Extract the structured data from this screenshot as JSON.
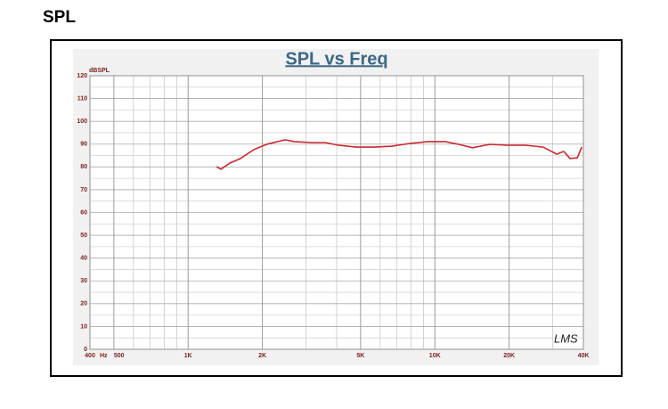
{
  "heading": "SPL",
  "chart_data": {
    "type": "line",
    "title": "SPL vs Freq",
    "y_label": "dBSPL",
    "x_unit": "Hz",
    "watermark": "LMS",
    "x": [
      1303,
      1358,
      1476,
      1630,
      1845,
      2090,
      2470,
      2690,
      3170,
      3590,
      4070,
      4800,
      5670,
      6700,
      7910,
      9340,
      11000,
      12500,
      14200,
      16700,
      19700,
      23300,
      27500,
      31200,
      33300,
      35300,
      37800,
      39400
    ],
    "values": [
      80.1,
      79,
      81.7,
      83.7,
      87.6,
      90,
      91.9,
      91.1,
      90.7,
      90.7,
      89.5,
      88.7,
      88.7,
      89.1,
      90.3,
      91.1,
      91.1,
      89.9,
      88.4,
      89.9,
      89.5,
      89.5,
      88.7,
      85.6,
      86.8,
      83.7,
      84,
      88.7
    ],
    "color": "#c8282d",
    "xlim": [
      400,
      40000
    ],
    "log_x": true,
    "xticks": [
      400,
      500,
      {
        "value": 1000,
        "label": "1K"
      },
      {
        "value": 2000,
        "label": "2K"
      },
      {
        "value": 5000,
        "label": "5K"
      },
      {
        "value": 10000,
        "label": "10K"
      },
      {
        "value": 20000,
        "label": "20K"
      },
      {
        "value": 40000,
        "label": "40K"
      }
    ],
    "ylim": [
      0,
      120
    ],
    "yticks": [
      0,
      10,
      20,
      30,
      40,
      50,
      60,
      70,
      80,
      90,
      100,
      110,
      120
    ],
    "grid": true
  }
}
